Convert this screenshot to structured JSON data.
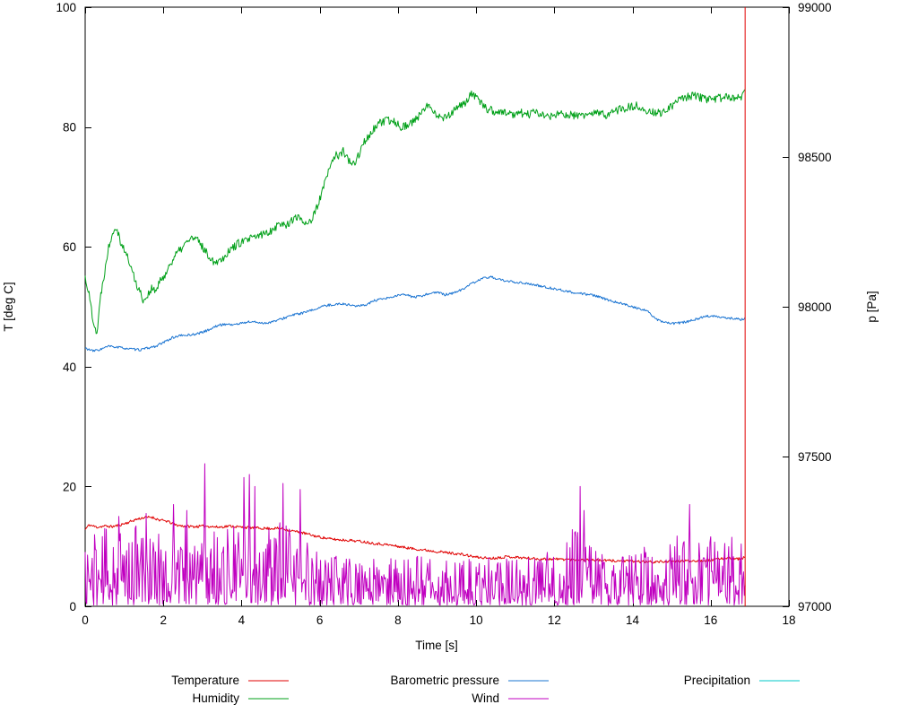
{
  "chart_data": {
    "type": "line",
    "title": "",
    "xlabel": "Time [s]",
    "ylabel_left": "T [deg C]",
    "ylabel_right": "p [Pa]",
    "xlim": [
      0,
      18
    ],
    "ylim_left": [
      0,
      100
    ],
    "ylim_right": [
      97000,
      99000
    ],
    "xticks": [
      0,
      2,
      4,
      6,
      8,
      10,
      12,
      14,
      16,
      18
    ],
    "yticks_left": [
      0,
      20,
      40,
      60,
      80,
      100
    ],
    "yticks_right": [
      97000,
      97500,
      98000,
      98500,
      99000
    ],
    "grid": false,
    "legend_position": "below",
    "resample_dx": 0.02,
    "x_end": 16.88,
    "annotations": [
      {
        "type": "vline",
        "x": 16.88,
        "color": "#e00000"
      }
    ],
    "series": [
      {
        "name": "Temperature",
        "color": "#e00000",
        "axis": "left",
        "noise": 0.22,
        "seed": 11,
        "anchors": [
          [
            0,
            12.8
          ],
          [
            0.1,
            13.6
          ],
          [
            0.3,
            13.2
          ],
          [
            0.5,
            13.4
          ],
          [
            0.7,
            13.3
          ],
          [
            0.9,
            13.6
          ],
          [
            1.1,
            14.0
          ],
          [
            1.3,
            14.5
          ],
          [
            1.5,
            14.8
          ],
          [
            1.7,
            14.9
          ],
          [
            1.9,
            14.4
          ],
          [
            2.1,
            14.2
          ],
          [
            2.3,
            13.6
          ],
          [
            2.5,
            13.4
          ],
          [
            2.8,
            13.3
          ],
          [
            3.1,
            13.4
          ],
          [
            3.4,
            13.2
          ],
          [
            3.7,
            13.4
          ],
          [
            4.0,
            13.2
          ],
          [
            4.3,
            13.1
          ],
          [
            4.6,
            13.0
          ],
          [
            5.0,
            13.0
          ],
          [
            5.3,
            12.6
          ],
          [
            5.6,
            12.2
          ],
          [
            5.9,
            11.7
          ],
          [
            6.2,
            11.3
          ],
          [
            6.5,
            11.1
          ],
          [
            6.8,
            11.0
          ],
          [
            7.1,
            10.8
          ],
          [
            7.4,
            10.5
          ],
          [
            7.7,
            10.3
          ],
          [
            8.0,
            10.0
          ],
          [
            8.4,
            9.6
          ],
          [
            8.8,
            9.3
          ],
          [
            9.2,
            9.0
          ],
          [
            9.6,
            8.7
          ],
          [
            10.0,
            8.2
          ],
          [
            10.4,
            8.0
          ],
          [
            10.8,
            8.3
          ],
          [
            11.2,
            8.1
          ],
          [
            11.6,
            7.9
          ],
          [
            12.0,
            7.9
          ],
          [
            12.5,
            7.8
          ],
          [
            13.0,
            7.7
          ],
          [
            13.5,
            7.6
          ],
          [
            14.0,
            7.5
          ],
          [
            14.5,
            7.4
          ],
          [
            15.0,
            7.5
          ],
          [
            15.5,
            7.6
          ],
          [
            16.0,
            7.7
          ],
          [
            16.4,
            8.1
          ],
          [
            16.7,
            7.9
          ],
          [
            16.88,
            8.2
          ]
        ]
      },
      {
        "name": "Humidity",
        "color": "#00a018",
        "axis": "left",
        "noise": 0.7,
        "seed": 22,
        "anchors": [
          [
            0,
            55
          ],
          [
            0.1,
            52
          ],
          [
            0.2,
            48
          ],
          [
            0.3,
            45.5
          ],
          [
            0.4,
            52
          ],
          [
            0.5,
            56
          ],
          [
            0.6,
            60
          ],
          [
            0.7,
            62.5
          ],
          [
            0.8,
            63.5
          ],
          [
            0.9,
            61
          ],
          [
            1.0,
            59.5
          ],
          [
            1.1,
            58
          ],
          [
            1.2,
            56
          ],
          [
            1.3,
            54
          ],
          [
            1.4,
            52.5
          ],
          [
            1.5,
            51
          ],
          [
            1.6,
            52
          ],
          [
            1.7,
            53
          ],
          [
            1.8,
            52.5
          ],
          [
            1.9,
            54
          ],
          [
            2.0,
            55
          ],
          [
            2.1,
            56
          ],
          [
            2.2,
            57.5
          ],
          [
            2.3,
            58.5
          ],
          [
            2.5,
            60
          ],
          [
            2.7,
            61.5
          ],
          [
            2.9,
            61
          ],
          [
            3.0,
            60
          ],
          [
            3.1,
            59
          ],
          [
            3.3,
            57.5
          ],
          [
            3.5,
            58
          ],
          [
            3.7,
            59.5
          ],
          [
            3.9,
            60.5
          ],
          [
            4.1,
            61
          ],
          [
            4.3,
            61.5
          ],
          [
            4.5,
            62
          ],
          [
            4.7,
            62.5
          ],
          [
            4.9,
            63.5
          ],
          [
            5.0,
            64
          ],
          [
            5.1,
            63.5
          ],
          [
            5.3,
            64.5
          ],
          [
            5.5,
            65
          ],
          [
            5.6,
            64
          ],
          [
            5.8,
            64.5
          ],
          [
            5.9,
            66
          ],
          [
            6.0,
            68
          ],
          [
            6.1,
            70
          ],
          [
            6.2,
            72
          ],
          [
            6.3,
            74
          ],
          [
            6.4,
            75.5
          ],
          [
            6.5,
            75
          ],
          [
            6.6,
            76
          ],
          [
            6.7,
            75
          ],
          [
            6.8,
            73.5
          ],
          [
            6.9,
            74
          ],
          [
            7.0,
            75.5
          ],
          [
            7.1,
            77
          ],
          [
            7.2,
            78
          ],
          [
            7.3,
            79
          ],
          [
            7.5,
            80.5
          ],
          [
            7.7,
            81
          ],
          [
            7.9,
            81
          ],
          [
            8.1,
            80
          ],
          [
            8.3,
            80.5
          ],
          [
            8.5,
            81.5
          ],
          [
            8.7,
            83
          ],
          [
            8.8,
            84
          ],
          [
            8.9,
            83
          ],
          [
            9.0,
            82
          ],
          [
            9.1,
            81.5
          ],
          [
            9.3,
            82
          ],
          [
            9.5,
            83
          ],
          [
            9.7,
            84
          ],
          [
            9.9,
            85.5
          ],
          [
            10.0,
            85
          ],
          [
            10.1,
            84
          ],
          [
            10.3,
            83
          ],
          [
            10.5,
            82.5
          ],
          [
            10.7,
            82.5
          ],
          [
            10.9,
            82
          ],
          [
            11.1,
            82.5
          ],
          [
            11.3,
            82
          ],
          [
            11.5,
            82.5
          ],
          [
            11.7,
            82
          ],
          [
            11.9,
            81.8
          ],
          [
            12.1,
            82
          ],
          [
            12.3,
            82.2
          ],
          [
            12.5,
            81.8
          ],
          [
            12.7,
            82
          ],
          [
            12.9,
            82
          ],
          [
            13.1,
            82.3
          ],
          [
            13.3,
            82
          ],
          [
            13.5,
            82.5
          ],
          [
            13.7,
            83
          ],
          [
            13.9,
            83.3
          ],
          [
            14.1,
            83.5
          ],
          [
            14.3,
            83
          ],
          [
            14.5,
            82.5
          ],
          [
            14.7,
            82.3
          ],
          [
            14.9,
            82.8
          ],
          [
            15.0,
            83.5
          ],
          [
            15.2,
            84.5
          ],
          [
            15.4,
            85
          ],
          [
            15.6,
            85.2
          ],
          [
            15.8,
            84.8
          ],
          [
            16.0,
            84.5
          ],
          [
            16.2,
            84.8
          ],
          [
            16.4,
            85
          ],
          [
            16.6,
            84.7
          ],
          [
            16.8,
            85
          ],
          [
            16.88,
            86
          ]
        ]
      },
      {
        "name": "Barometric pressure",
        "color": "#1a74d2",
        "axis": "right",
        "noise": 4,
        "seed": 33,
        "anchors": [
          [
            0,
            97862
          ],
          [
            0.2,
            97852
          ],
          [
            0.4,
            97858
          ],
          [
            0.6,
            97868
          ],
          [
            0.8,
            97865
          ],
          [
            1.0,
            97862
          ],
          [
            1.2,
            97858
          ],
          [
            1.4,
            97856
          ],
          [
            1.6,
            97862
          ],
          [
            1.8,
            97868
          ],
          [
            2.0,
            97880
          ],
          [
            2.2,
            97895
          ],
          [
            2.4,
            97903
          ],
          [
            2.6,
            97905
          ],
          [
            2.8,
            97908
          ],
          [
            3.0,
            97915
          ],
          [
            3.2,
            97925
          ],
          [
            3.4,
            97938
          ],
          [
            3.6,
            97942
          ],
          [
            3.8,
            97940
          ],
          [
            4.0,
            97945
          ],
          [
            4.2,
            97950
          ],
          [
            4.4,
            97948
          ],
          [
            4.6,
            97945
          ],
          [
            4.8,
            97950
          ],
          [
            5.0,
            97958
          ],
          [
            5.2,
            97968
          ],
          [
            5.4,
            97975
          ],
          [
            5.6,
            97980
          ],
          [
            5.8,
            97988
          ],
          [
            6.0,
            97998
          ],
          [
            6.2,
            98005
          ],
          [
            6.4,
            98008
          ],
          [
            6.6,
            98010
          ],
          [
            6.8,
            98005
          ],
          [
            7.0,
            98002
          ],
          [
            7.2,
            98008
          ],
          [
            7.4,
            98020
          ],
          [
            7.6,
            98025
          ],
          [
            7.8,
            98030
          ],
          [
            8.0,
            98038
          ],
          [
            8.2,
            98040
          ],
          [
            8.4,
            98032
          ],
          [
            8.6,
            98035
          ],
          [
            8.8,
            98045
          ],
          [
            9.0,
            98048
          ],
          [
            9.2,
            98040
          ],
          [
            9.4,
            98045
          ],
          [
            9.6,
            98055
          ],
          [
            9.8,
            98070
          ],
          [
            10.0,
            98085
          ],
          [
            10.2,
            98095
          ],
          [
            10.4,
            98100
          ],
          [
            10.6,
            98090
          ],
          [
            10.8,
            98085
          ],
          [
            11.0,
            98082
          ],
          [
            11.2,
            98080
          ],
          [
            11.4,
            98075
          ],
          [
            11.6,
            98070
          ],
          [
            11.8,
            98065
          ],
          [
            12.0,
            98060
          ],
          [
            12.2,
            98055
          ],
          [
            12.4,
            98050
          ],
          [
            12.6,
            98045
          ],
          [
            12.8,
            98042
          ],
          [
            13.0,
            98038
          ],
          [
            13.2,
            98030
          ],
          [
            13.4,
            98022
          ],
          [
            13.6,
            98015
          ],
          [
            13.8,
            98008
          ],
          [
            14.0,
            98000
          ],
          [
            14.2,
            97992
          ],
          [
            14.4,
            97985
          ],
          [
            14.6,
            97958
          ],
          [
            14.8,
            97948
          ],
          [
            15.0,
            97944
          ],
          [
            15.2,
            97946
          ],
          [
            15.4,
            97950
          ],
          [
            15.6,
            97958
          ],
          [
            15.8,
            97965
          ],
          [
            16.0,
            97970
          ],
          [
            16.2,
            97968
          ],
          [
            16.4,
            97962
          ],
          [
            16.6,
            97960
          ],
          [
            16.8,
            97958
          ],
          [
            16.88,
            97962
          ]
        ]
      },
      {
        "name": "Wind",
        "color": "#c000c0",
        "axis": "left",
        "type": "spiky",
        "seed": 44,
        "min": 0.2,
        "envelope": [
          [
            0,
            12
          ],
          [
            0.5,
            13
          ],
          [
            1.0,
            13.5
          ],
          [
            1.5,
            14
          ],
          [
            2.0,
            13
          ],
          [
            2.5,
            13.5
          ],
          [
            3.0,
            14
          ],
          [
            3.5,
            13
          ],
          [
            4.0,
            14
          ],
          [
            4.5,
            13
          ],
          [
            5.0,
            14
          ],
          [
            5.5,
            12
          ],
          [
            6.0,
            9
          ],
          [
            6.5,
            8.5
          ],
          [
            7.0,
            8
          ],
          [
            7.5,
            8.5
          ],
          [
            8.0,
            8
          ],
          [
            8.5,
            8.5
          ],
          [
            9.0,
            8
          ],
          [
            9.5,
            8.5
          ],
          [
            10.0,
            8
          ],
          [
            10.5,
            8.5
          ],
          [
            11.0,
            8
          ],
          [
            11.5,
            8.5
          ],
          [
            12.0,
            10
          ],
          [
            12.3,
            13
          ],
          [
            12.7,
            13
          ],
          [
            13.0,
            12
          ],
          [
            13.5,
            9
          ],
          [
            14.0,
            9
          ],
          [
            14.5,
            11
          ],
          [
            15.0,
            12
          ],
          [
            15.5,
            13
          ],
          [
            16.0,
            12
          ],
          [
            16.5,
            12
          ],
          [
            16.88,
            12
          ]
        ],
        "spikes": [
          [
            0.85,
            15
          ],
          [
            1.55,
            15.5
          ],
          [
            2.25,
            17
          ],
          [
            2.6,
            16
          ],
          [
            3.05,
            23.8
          ],
          [
            4.05,
            21.5
          ],
          [
            4.2,
            22
          ],
          [
            4.35,
            20
          ],
          [
            5.05,
            20.5
          ],
          [
            5.5,
            19.5
          ],
          [
            12.65,
            20
          ],
          [
            12.75,
            16
          ],
          [
            15.45,
            17
          ]
        ]
      },
      {
        "name": "Precipitation",
        "color": "#00c8c8",
        "axis": "left",
        "anchors": []
      }
    ],
    "legend": {
      "rows": [
        [
          "Temperature",
          "Barometric pressure",
          "Precipitation"
        ],
        [
          "Humidity",
          "Wind"
        ]
      ]
    }
  }
}
